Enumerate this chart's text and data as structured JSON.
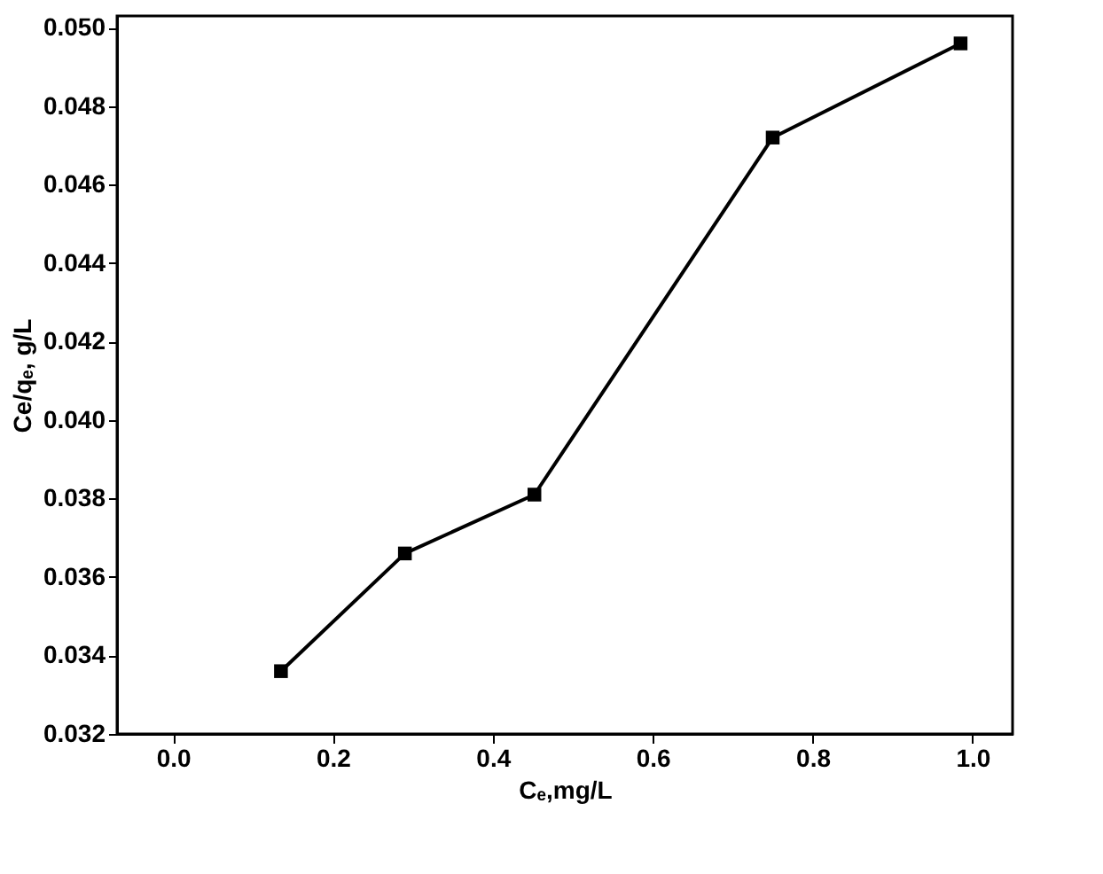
{
  "chart_data": {
    "type": "line",
    "xlabel": "Cₑ,mg/L",
    "ylabel": "Ce/qₑ, g/L",
    "x": [
      0.135,
      0.29,
      0.452,
      0.75,
      0.985
    ],
    "series": [
      {
        "color": "#000000",
        "values": [
          0.0336,
          0.0366,
          0.0381,
          0.0472,
          0.0496
        ]
      }
    ],
    "xlim": [
      -0.07,
      1.05
    ],
    "xticks": [
      {
        "value": 0.0,
        "label": "0.0"
      },
      {
        "value": 0.2,
        "label": "0.2"
      },
      {
        "value": 0.4,
        "label": "0.4"
      },
      {
        "value": 0.6,
        "label": "0.6"
      },
      {
        "value": 0.8,
        "label": "0.8"
      },
      {
        "value": 1.0,
        "label": "1.0"
      }
    ],
    "ylim": [
      0.032,
      0.0503
    ],
    "yticks": [
      {
        "value": 0.032,
        "label": "0.032"
      },
      {
        "value": 0.034,
        "label": "0.034"
      },
      {
        "value": 0.036,
        "label": "0.036"
      },
      {
        "value": 0.038,
        "label": "0.038"
      },
      {
        "value": 0.04,
        "label": "0.040"
      },
      {
        "value": 0.042,
        "label": "0.042"
      },
      {
        "value": 0.044,
        "label": "0.044"
      },
      {
        "value": 0.046,
        "label": "0.046"
      },
      {
        "value": 0.048,
        "label": "0.048"
      },
      {
        "value": 0.05,
        "label": "0.050"
      }
    ],
    "marker": "square",
    "line_style": "solid",
    "grid": false
  }
}
